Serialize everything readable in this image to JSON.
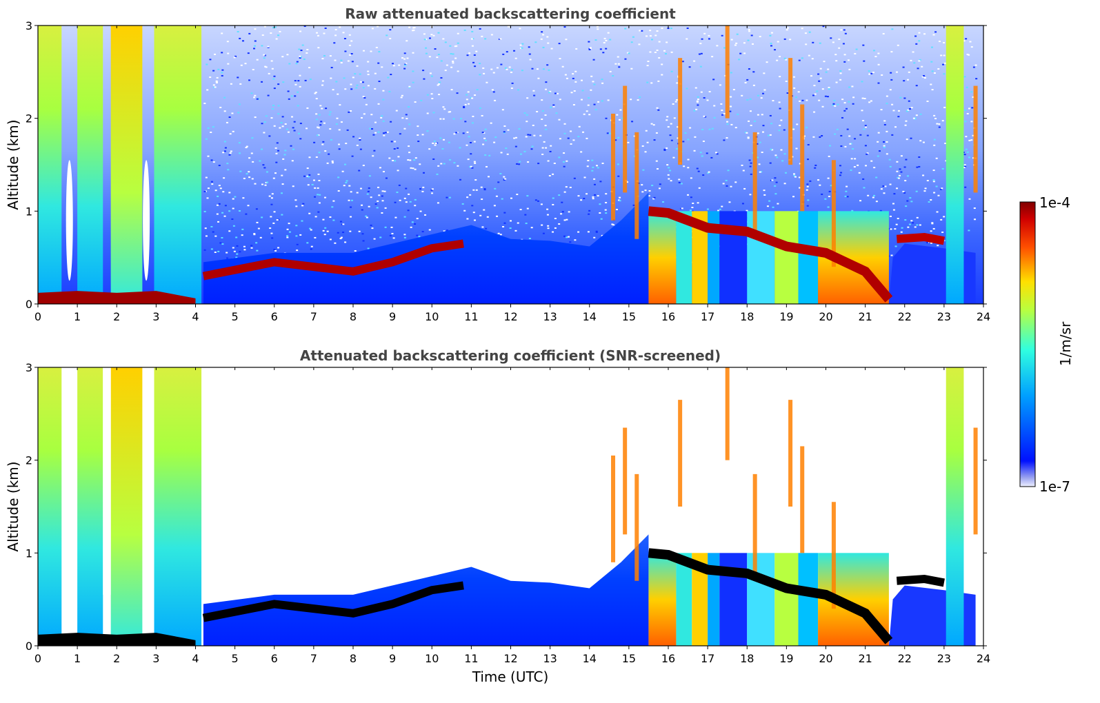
{
  "chart_data": [
    {
      "type": "heatmap",
      "title": "Raw attenuated backscattering coefficient",
      "xlabel": "",
      "ylabel": "Altitude (km)",
      "xlim": [
        0,
        24
      ],
      "ylim": [
        0,
        3
      ],
      "xticks": [
        "0",
        "1",
        "2",
        "3",
        "4",
        "5",
        "6",
        "7",
        "8",
        "9",
        "10",
        "11",
        "12",
        "13",
        "14",
        "15",
        "16",
        "17",
        "18",
        "19",
        "20",
        "21",
        "22",
        "23",
        "24"
      ],
      "yticks": [
        "0",
        "1",
        "2",
        "3"
      ],
      "screened": false
    },
    {
      "type": "heatmap",
      "title": "Attenuated backscattering coefficient (SNR-screened)",
      "xlabel": "Time (UTC)",
      "ylabel": "Altitude (km)",
      "xlim": [
        0,
        24
      ],
      "ylim": [
        0,
        3
      ],
      "xticks": [
        "0",
        "1",
        "2",
        "3",
        "4",
        "5",
        "6",
        "7",
        "8",
        "9",
        "10",
        "11",
        "12",
        "13",
        "14",
        "15",
        "16",
        "17",
        "18",
        "19",
        "20",
        "21",
        "22",
        "23",
        "24"
      ],
      "yticks": [
        "0",
        "1",
        "2",
        "3"
      ],
      "screened": true
    }
  ],
  "colorbar": {
    "label": "1/m/sr",
    "max_label": "1e-4",
    "min_label": "1e-7",
    "colormap": "jet",
    "scale": "log"
  },
  "features": {
    "surface_layer": [
      [
        0,
        0.12
      ],
      [
        1,
        0.14
      ],
      [
        2,
        0.12
      ],
      [
        3,
        0.14
      ],
      [
        4,
        0.06
      ]
    ],
    "rain_columns": [
      [
        0,
        0.6
      ],
      [
        1.0,
        1.65
      ],
      [
        1.85,
        2.65
      ],
      [
        2.95,
        4.15
      ],
      [
        23.05,
        23.5
      ]
    ],
    "boundary_layer_top": [
      [
        4.2,
        0.3
      ],
      [
        4.8,
        0.35
      ],
      [
        6,
        0.45
      ],
      [
        7,
        0.4
      ],
      [
        8,
        0.35
      ],
      [
        9,
        0.45
      ],
      [
        10,
        0.6
      ],
      [
        10.8,
        0.65
      ]
    ],
    "cloud_layer": [
      [
        15.5,
        1.0
      ],
      [
        16,
        0.98
      ],
      [
        17,
        0.82
      ],
      [
        18,
        0.78
      ],
      [
        19,
        0.62
      ],
      [
        20,
        0.55
      ],
      [
        21,
        0.35
      ],
      [
        21.6,
        0.05
      ]
    ],
    "elevated_layer": [
      [
        21.8,
        0.7
      ],
      [
        22.5,
        0.72
      ],
      [
        23,
        0.68
      ]
    ],
    "streaks": [
      [
        14.6,
        1.8
      ],
      [
        14.9,
        2.1
      ],
      [
        15.2,
        1.6
      ],
      [
        16.3,
        2.4
      ],
      [
        17.5,
        2.9
      ],
      [
        18.2,
        1.6
      ],
      [
        19.1,
        2.4
      ],
      [
        19.4,
        1.9
      ],
      [
        20.2,
        1.3
      ],
      [
        23.8,
        2.1
      ]
    ]
  }
}
